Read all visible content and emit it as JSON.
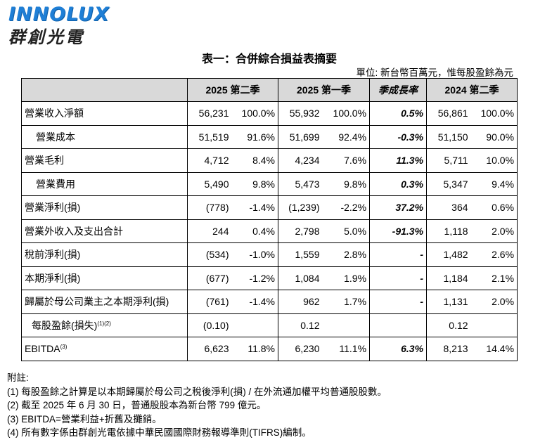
{
  "logo": {
    "en": "INNOLUX",
    "zh": "群創光電"
  },
  "title": "表一：合併綜合損益表摘要",
  "unit_note": "單位: 新台幣百萬元，惟每股盈餘為元",
  "table": {
    "headers": [
      "",
      "2025 第二季",
      "2025 第一季",
      "季成長率",
      "2024 第二季"
    ],
    "rows": [
      {
        "label": "營業收入淨額",
        "q2_25": "56,231",
        "q2_25_pct": "100.0%",
        "q1_25": "55,932",
        "q1_25_pct": "100.0%",
        "growth": "0.5%",
        "q2_24": "56,861",
        "q2_24_pct": "100.0%"
      },
      {
        "label": "營業成本",
        "q2_25": "51,519",
        "q2_25_pct": "91.6%",
        "q1_25": "51,699",
        "q1_25_pct": "92.4%",
        "growth": "-0.3%",
        "q2_24": "51,150",
        "q2_24_pct": "90.0%"
      },
      {
        "label": "營業毛利",
        "q2_25": "4,712",
        "q2_25_pct": "8.4%",
        "q1_25": "4,234",
        "q1_25_pct": "7.6%",
        "growth": "11.3%",
        "q2_24": "5,711",
        "q2_24_pct": "10.0%"
      },
      {
        "label": "營業費用",
        "q2_25": "5,490",
        "q2_25_pct": "9.8%",
        "q1_25": "5,473",
        "q1_25_pct": "9.8%",
        "growth": "0.3%",
        "q2_24": "5,347",
        "q2_24_pct": "9.4%"
      },
      {
        "label": "營業淨利(損)",
        "q2_25": "(778)",
        "q2_25_pct": "-1.4%",
        "q1_25": "(1,239)",
        "q1_25_pct": "-2.2%",
        "growth": "37.2%",
        "q2_24": "364",
        "q2_24_pct": "0.6%"
      },
      {
        "label": "營業外收入及支出合計",
        "q2_25": "244",
        "q2_25_pct": "0.4%",
        "q1_25": "2,798",
        "q1_25_pct": "5.0%",
        "growth": "-91.3%",
        "q2_24": "1,118",
        "q2_24_pct": "2.0%"
      },
      {
        "label": "稅前淨利(損)",
        "q2_25": "(534)",
        "q2_25_pct": "-1.0%",
        "q1_25": "1,559",
        "q1_25_pct": "2.8%",
        "growth": "-",
        "q2_24": "1,482",
        "q2_24_pct": "2.6%"
      },
      {
        "label": "本期淨利(損)",
        "q2_25": "(677)",
        "q2_25_pct": "-1.2%",
        "q1_25": "1,084",
        "q1_25_pct": "1.9%",
        "growth": "-",
        "q2_24": "1,184",
        "q2_24_pct": "2.1%"
      },
      {
        "label": "歸屬於母公司業主之本期淨利(損)",
        "q2_25": "(761)",
        "q2_25_pct": "-1.4%",
        "q1_25": "962",
        "q1_25_pct": "1.7%",
        "growth": "-",
        "q2_24": "1,131",
        "q2_24_pct": "2.0%"
      },
      {
        "label": "每股盈餘(損失)",
        "label_sup": "(1)(2)",
        "q2_25": "(0.10)",
        "q2_25_pct": "",
        "q1_25": "0.12",
        "q1_25_pct": "",
        "growth": "",
        "q2_24": "0.12",
        "q2_24_pct": ""
      },
      {
        "label": "EBITDA",
        "label_sup": "(3)",
        "q2_25": "6,623",
        "q2_25_pct": "11.8%",
        "q1_25": "6,230",
        "q1_25_pct": "11.1%",
        "growth": "6.3%",
        "q2_24": "8,213",
        "q2_24_pct": "14.4%"
      }
    ]
  },
  "notes": {
    "heading": "附註:",
    "items": [
      "(1)  每股盈餘之計算是以本期歸屬於母公司之稅後淨利(損) / 在外流通加權平均普通股股數。",
      "(2)  截至 2025 年 6 月 30 日，普通股股本為新台幣 799 億元。",
      "(3)  EBITDA=營業利益+折舊及攤銷。",
      "(4)  所有數字係由群創光電依據中華民國國際財務報導準則(TIFRS)編制。"
    ]
  }
}
